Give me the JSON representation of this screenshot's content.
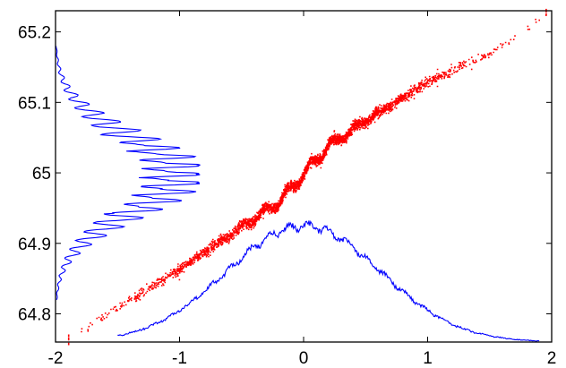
{
  "chart_data": {
    "type": "scatter",
    "title": "",
    "xlabel": "",
    "ylabel": "",
    "xlim": [
      -2,
      2
    ],
    "ylim": [
      64.76,
      65.23
    ],
    "x_ticks": [
      "-2",
      "-1",
      "0",
      "1",
      "2"
    ],
    "y_ticks": [
      "64.8",
      "64.9",
      "65",
      "65.1",
      "65.2"
    ],
    "grid": false,
    "legend": "none",
    "colors": {
      "scatter": "#ff0000",
      "histogram": "#0000ff",
      "axes": "#000000"
    },
    "series": [
      {
        "kind": "scatter",
        "description_points": [
          [
            -1.9,
            64.765
          ],
          [
            -1.5,
            64.81
          ],
          [
            -1.0,
            64.865
          ],
          [
            -0.5,
            64.925
          ],
          [
            -0.2,
            64.96
          ],
          [
            0.0,
            65.0
          ],
          [
            0.2,
            65.04
          ],
          [
            0.5,
            65.075
          ],
          [
            1.0,
            65.13
          ],
          [
            1.5,
            65.17
          ],
          [
            1.95,
            65.225
          ]
        ]
      },
      {
        "kind": "histogram-horizontal",
        "baseline_x": -2,
        "y_range": [
          64.82,
          65.18
        ],
        "peak_x": -0.85
      },
      {
        "kind": "histogram-vertical",
        "baseline_y": 64.76,
        "x_range": [
          -1.5,
          1.9
        ],
        "peak_y": 64.93
      }
    ]
  }
}
